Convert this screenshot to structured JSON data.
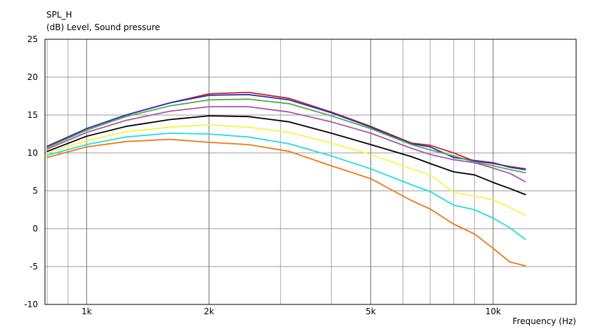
{
  "chart_data": {
    "type": "line",
    "title": "SPL_H",
    "ylabel": "(dB)  Level, Sound pressure",
    "xlabel": "Frequency  (Hz)",
    "x_scale": "log",
    "xlim": [
      790,
      16000
    ],
    "ylim": [
      -10,
      25
    ],
    "grid": true,
    "legend": "none",
    "x_ticks": [
      {
        "value": 1000,
        "label": "1k"
      },
      {
        "value": 2000,
        "label": "2k"
      },
      {
        "value": 5000,
        "label": "5k"
      },
      {
        "value": 10000,
        "label": "10k"
      }
    ],
    "y_ticks": [
      {
        "value": 25,
        "label": "25"
      },
      {
        "value": 20,
        "label": "20"
      },
      {
        "value": 15,
        "label": "15"
      },
      {
        "value": 10,
        "label": "10"
      },
      {
        "value": 5,
        "label": "5"
      },
      {
        "value": 0,
        "label": "0"
      },
      {
        "value": -5,
        "label": "-5"
      },
      {
        "value": -10,
        "label": "-10"
      }
    ],
    "x": [
      800,
      1000,
      1250,
      1600,
      2000,
      2500,
      3150,
      4000,
      5000,
      6300,
      7000,
      8000,
      9000,
      10000,
      11000,
      12000
    ],
    "series": [
      {
        "color": "#cc2222",
        "values": [
          10.9,
          13.2,
          15.0,
          16.6,
          17.8,
          18.0,
          17.2,
          15.4,
          13.5,
          11.3,
          11.0,
          10.0,
          8.9,
          8.6,
          8.2,
          7.9
        ]
      },
      {
        "color": "#2233bb",
        "values": [
          10.8,
          13.2,
          15.0,
          16.6,
          17.6,
          17.7,
          17.0,
          15.3,
          13.4,
          11.2,
          10.8,
          9.4,
          9.0,
          8.7,
          8.1,
          7.8
        ]
      },
      {
        "color": "#55aa44",
        "values": [
          10.7,
          13.0,
          14.8,
          16.2,
          17.0,
          17.1,
          16.5,
          14.9,
          13.2,
          11.1,
          10.4,
          9.6,
          8.8,
          8.3,
          7.8,
          7.4
        ]
      },
      {
        "color": "#aa55aa",
        "values": [
          10.5,
          12.7,
          14.3,
          15.5,
          16.1,
          16.1,
          15.4,
          14.1,
          12.6,
          10.6,
          9.8,
          9.1,
          8.7,
          8.0,
          7.3,
          6.2
        ]
      },
      {
        "color": "#000000",
        "values": [
          10.2,
          12.2,
          13.5,
          14.4,
          14.9,
          14.8,
          14.1,
          12.6,
          11.1,
          9.5,
          8.6,
          7.5,
          7.1,
          6.1,
          5.3,
          4.5
        ]
      },
      {
        "color": "#f5f54a",
        "values": [
          10.0,
          11.6,
          12.8,
          13.4,
          13.7,
          13.4,
          12.7,
          11.3,
          9.8,
          7.9,
          7.1,
          4.8,
          4.3,
          3.8,
          2.8,
          1.8
        ]
      },
      {
        "color": "#22dddd",
        "values": [
          9.7,
          11.1,
          12.1,
          12.6,
          12.5,
          12.1,
          11.2,
          9.6,
          7.9,
          5.8,
          4.9,
          3.1,
          2.5,
          1.4,
          0.1,
          -1.4
        ]
      },
      {
        "color": "#ee7711",
        "values": [
          9.4,
          10.8,
          11.5,
          11.8,
          11.4,
          11.1,
          10.2,
          8.3,
          6.6,
          3.7,
          2.6,
          0.6,
          -0.7,
          -2.6,
          -4.4,
          -4.9
        ]
      }
    ]
  }
}
